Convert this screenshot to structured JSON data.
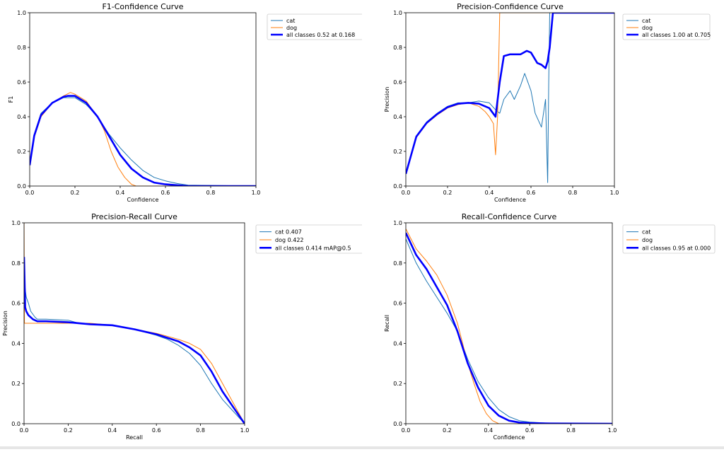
{
  "chart_data": [
    {
      "type": "line",
      "title": "F1-Confidence Curve",
      "xlabel": "Confidence",
      "ylabel": "F1",
      "xlim": [
        0,
        1
      ],
      "ylim": [
        0,
        1
      ],
      "xticks": [
        "0.0",
        "0.2",
        "0.4",
        "0.6",
        "0.8",
        "1.0"
      ],
      "yticks": [
        "0.0",
        "0.2",
        "0.4",
        "0.6",
        "0.8",
        "1.0"
      ],
      "legend_position": "outside-right",
      "series": [
        {
          "name": "cat",
          "color": "#1f77b4",
          "width": "thin",
          "x": [
            0,
            0.02,
            0.05,
            0.1,
            0.15,
            0.2,
            0.25,
            0.3,
            0.35,
            0.4,
            0.45,
            0.5,
            0.55,
            0.6,
            0.65,
            0.7,
            1.0
          ],
          "y": [
            0.12,
            0.3,
            0.42,
            0.48,
            0.51,
            0.51,
            0.47,
            0.4,
            0.3,
            0.22,
            0.15,
            0.09,
            0.05,
            0.03,
            0.015,
            0.005,
            0.0
          ]
        },
        {
          "name": "dog",
          "color": "#ff7f0e",
          "width": "thin",
          "x": [
            0,
            0.02,
            0.05,
            0.1,
            0.15,
            0.18,
            0.2,
            0.25,
            0.3,
            0.33,
            0.36,
            0.39,
            0.42,
            0.45,
            0.47,
            1.0
          ],
          "y": [
            0.12,
            0.28,
            0.4,
            0.48,
            0.52,
            0.54,
            0.53,
            0.49,
            0.4,
            0.32,
            0.2,
            0.11,
            0.05,
            0.01,
            0.0,
            0.0
          ]
        },
        {
          "name": "all classes 0.52 at 0.168",
          "color": "#0000ff",
          "width": "thick",
          "x": [
            0,
            0.02,
            0.05,
            0.1,
            0.15,
            0.168,
            0.2,
            0.25,
            0.3,
            0.35,
            0.4,
            0.45,
            0.5,
            0.55,
            0.6,
            0.65,
            0.7,
            1.0
          ],
          "y": [
            0.12,
            0.29,
            0.41,
            0.48,
            0.515,
            0.52,
            0.52,
            0.48,
            0.4,
            0.29,
            0.18,
            0.1,
            0.05,
            0.02,
            0.01,
            0.005,
            0.0,
            0.0
          ]
        }
      ]
    },
    {
      "type": "line",
      "title": "Precision-Confidence Curve",
      "xlabel": "Confidence",
      "ylabel": "Precision",
      "xlim": [
        0,
        1
      ],
      "ylim": [
        0,
        1
      ],
      "xticks": [
        "0.0",
        "0.2",
        "0.4",
        "0.6",
        "0.8",
        "1.0"
      ],
      "yticks": [
        "0.0",
        "0.2",
        "0.4",
        "0.6",
        "0.8",
        "1.0"
      ],
      "legend_position": "outside-right",
      "series": [
        {
          "name": "cat",
          "color": "#1f77b4",
          "width": "thin",
          "x": [
            0,
            0.05,
            0.1,
            0.15,
            0.2,
            0.25,
            0.3,
            0.35,
            0.4,
            0.43,
            0.45,
            0.47,
            0.5,
            0.52,
            0.55,
            0.57,
            0.6,
            0.62,
            0.65,
            0.67,
            0.68,
            0.685,
            0.69,
            1.0
          ],
          "y": [
            0.07,
            0.29,
            0.37,
            0.42,
            0.46,
            0.48,
            0.48,
            0.49,
            0.48,
            0.44,
            0.42,
            0.5,
            0.55,
            0.5,
            0.58,
            0.65,
            0.55,
            0.42,
            0.34,
            0.5,
            0.02,
            0.6,
            1.0,
            1.0
          ]
        },
        {
          "name": "dog",
          "color": "#ff7f0e",
          "width": "thin",
          "x": [
            0,
            0.05,
            0.1,
            0.15,
            0.2,
            0.25,
            0.3,
            0.35,
            0.38,
            0.4,
            0.42,
            0.43,
            0.44,
            0.45,
            0.46,
            1.0
          ],
          "y": [
            0.07,
            0.28,
            0.36,
            0.41,
            0.45,
            0.47,
            0.48,
            0.46,
            0.43,
            0.4,
            0.36,
            0.18,
            0.4,
            1.0,
            1.0,
            1.0
          ]
        },
        {
          "name": "all classes 1.00 at 0.705",
          "color": "#0000ff",
          "width": "thick",
          "x": [
            0,
            0.05,
            0.1,
            0.15,
            0.2,
            0.25,
            0.3,
            0.35,
            0.4,
            0.43,
            0.45,
            0.47,
            0.5,
            0.55,
            0.58,
            0.6,
            0.63,
            0.65,
            0.67,
            0.68,
            0.69,
            0.705,
            1.0
          ],
          "y": [
            0.07,
            0.285,
            0.365,
            0.415,
            0.455,
            0.475,
            0.48,
            0.475,
            0.45,
            0.4,
            0.6,
            0.75,
            0.76,
            0.76,
            0.78,
            0.77,
            0.71,
            0.7,
            0.68,
            0.72,
            0.8,
            1.0,
            1.0
          ]
        }
      ]
    },
    {
      "type": "line",
      "title": "Precision-Recall Curve",
      "xlabel": "Recall",
      "ylabel": "Precision",
      "xlim": [
        0,
        1
      ],
      "ylim": [
        0,
        1
      ],
      "xticks": [
        "0.0",
        "0.2",
        "0.4",
        "0.6",
        "0.8",
        "1.0"
      ],
      "yticks": [
        "0.0",
        "0.2",
        "0.4",
        "0.6",
        "0.8",
        "1.0"
      ],
      "legend_position": "outside-right",
      "series": [
        {
          "name": "cat 0.407",
          "color": "#1f77b4",
          "width": "thin",
          "x": [
            0,
            0.005,
            0.01,
            0.02,
            0.03,
            0.05,
            0.06,
            0.1,
            0.2,
            0.25,
            0.3,
            0.4,
            0.5,
            0.6,
            0.65,
            0.7,
            0.75,
            0.8,
            0.85,
            0.9,
            0.95,
            1.0
          ],
          "y": [
            0.8,
            0.67,
            0.63,
            0.6,
            0.56,
            0.53,
            0.52,
            0.52,
            0.515,
            0.5,
            0.495,
            0.49,
            0.47,
            0.44,
            0.42,
            0.39,
            0.35,
            0.29,
            0.2,
            0.12,
            0.06,
            0.0
          ]
        },
        {
          "name": "dog 0.422",
          "color": "#ff7f0e",
          "width": "thin",
          "x": [
            0,
            0.002,
            0.004,
            0.01,
            0.05,
            0.1,
            0.2,
            0.3,
            0.4,
            0.5,
            0.6,
            0.7,
            0.75,
            0.8,
            0.85,
            0.9,
            0.95,
            1.0
          ],
          "y": [
            1.0,
            0.5,
            0.5,
            0.5,
            0.5,
            0.5,
            0.5,
            0.5,
            0.49,
            0.47,
            0.45,
            0.42,
            0.4,
            0.37,
            0.3,
            0.2,
            0.1,
            0.0
          ]
        },
        {
          "name": "all classes 0.414 mAP@0.5",
          "color": "#0000ff",
          "width": "thick",
          "x": [
            0,
            0.005,
            0.01,
            0.02,
            0.04,
            0.06,
            0.1,
            0.2,
            0.3,
            0.4,
            0.5,
            0.6,
            0.7,
            0.75,
            0.8,
            0.85,
            0.9,
            0.95,
            1.0
          ],
          "y": [
            0.83,
            0.58,
            0.56,
            0.54,
            0.52,
            0.51,
            0.51,
            0.505,
            0.495,
            0.49,
            0.47,
            0.445,
            0.41,
            0.38,
            0.34,
            0.26,
            0.16,
            0.08,
            0.0
          ]
        }
      ]
    },
    {
      "type": "line",
      "title": "Recall-Confidence Curve",
      "xlabel": "Confidence",
      "ylabel": "Recall",
      "xlim": [
        0,
        1
      ],
      "ylim": [
        0,
        1
      ],
      "xticks": [
        "0.0",
        "0.2",
        "0.4",
        "0.6",
        "0.8",
        "1.0"
      ],
      "yticks": [
        "0.0",
        "0.2",
        "0.4",
        "0.6",
        "0.8",
        "1.0"
      ],
      "legend_position": "outside-right",
      "series": [
        {
          "name": "cat",
          "color": "#1f77b4",
          "width": "thin",
          "x": [
            0,
            0.05,
            0.1,
            0.15,
            0.2,
            0.25,
            0.3,
            0.35,
            0.4,
            0.45,
            0.5,
            0.55,
            0.6,
            0.7,
            1.0
          ],
          "y": [
            0.92,
            0.8,
            0.71,
            0.63,
            0.55,
            0.46,
            0.32,
            0.21,
            0.13,
            0.07,
            0.035,
            0.015,
            0.008,
            0.002,
            0.0
          ]
        },
        {
          "name": "dog",
          "color": "#ff7f0e",
          "width": "thin",
          "x": [
            0,
            0.05,
            0.1,
            0.15,
            0.2,
            0.25,
            0.3,
            0.33,
            0.36,
            0.39,
            0.42,
            0.45,
            1.0
          ],
          "y": [
            0.97,
            0.87,
            0.81,
            0.74,
            0.64,
            0.5,
            0.3,
            0.2,
            0.11,
            0.05,
            0.015,
            0.0,
            0.0
          ]
        },
        {
          "name": "all classes 0.95 at 0.000",
          "color": "#0000ff",
          "width": "thick",
          "x": [
            0,
            0.05,
            0.1,
            0.15,
            0.2,
            0.25,
            0.3,
            0.35,
            0.4,
            0.45,
            0.5,
            0.55,
            0.6,
            0.7,
            1.0
          ],
          "y": [
            0.95,
            0.84,
            0.77,
            0.68,
            0.59,
            0.46,
            0.3,
            0.18,
            0.09,
            0.04,
            0.015,
            0.006,
            0.003,
            0.001,
            0.0
          ]
        }
      ]
    }
  ]
}
